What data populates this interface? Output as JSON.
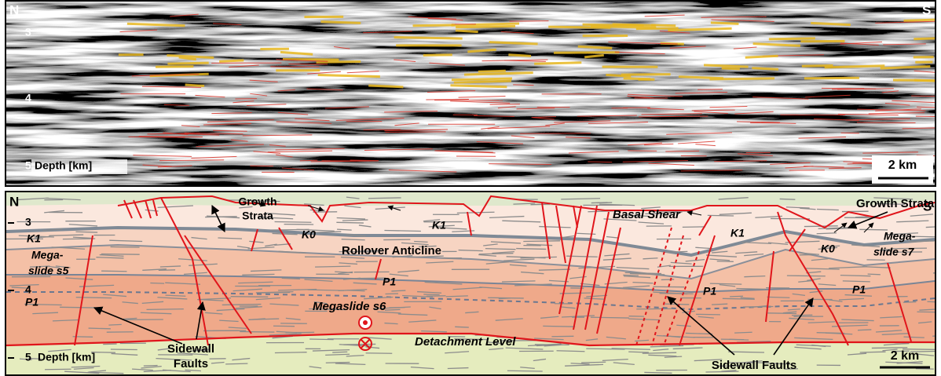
{
  "seismic_panel": {
    "north": "N",
    "south": "S",
    "depth_ticks": [
      "3",
      "4",
      "5"
    ],
    "depth_label": "Depth [km]",
    "scale_bar": "2 km"
  },
  "interpretation_panel": {
    "north": "N",
    "south": "S",
    "depth_ticks": [
      "3",
      "4",
      "5"
    ],
    "depth_label": "Depth [km]",
    "scale_bar": "2 km",
    "labels": [
      "Growth",
      "Strata",
      "K1",
      "Mega-",
      "slide s5",
      "P1",
      "K0",
      "Rollover Anticline",
      "P1",
      "Megaslide s6",
      "Detachment Level",
      "Sidewall",
      "Faults",
      "Basal Shear",
      "Growth Strata",
      "K1",
      "K0",
      "Mega-",
      "slide s7",
      "P1",
      "P1",
      "Sidewall Faults",
      "K1"
    ]
  }
}
